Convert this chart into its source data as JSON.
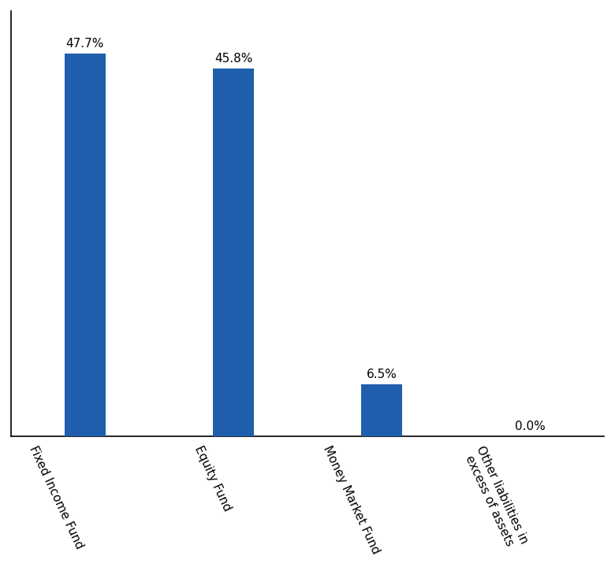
{
  "categories": [
    "Fixed Income Fund",
    "Equity Fund",
    "Money Market Fund",
    "Other liabilities in\nexcess of assets"
  ],
  "values": [
    47.7,
    45.8,
    6.5,
    0.0
  ],
  "bar_color": "#1F5FAD",
  "bar_width": 0.28,
  "tick_fontsize": 11,
  "value_label_fontsize": 11,
  "ylim": [
    0,
    53
  ],
  "background_color": "#ffffff",
  "spine_color": "#000000",
  "label_rotation": -65,
  "label_ha": "right"
}
